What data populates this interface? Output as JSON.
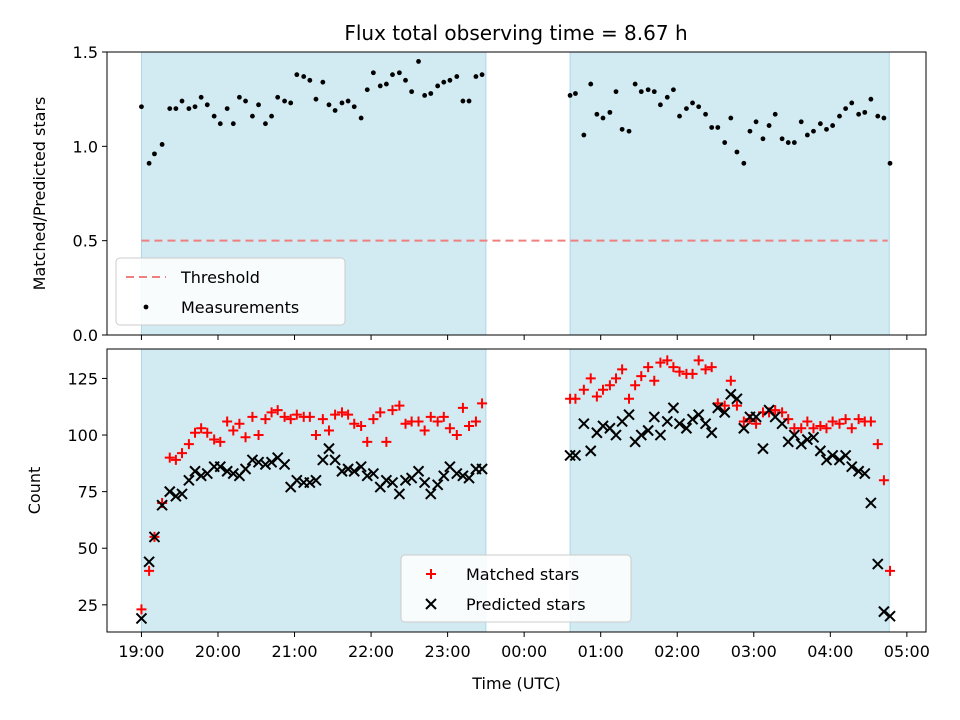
{
  "chart_data": [
    {
      "type": "scatter",
      "title": "Flux total observing time = 8.67 h",
      "ylabel": "Matched/Predicted stars",
      "xlabel": "",
      "ylim": [
        0,
        1.5
      ],
      "yticks": [
        "0.0",
        "0.5",
        "1.0",
        "1.5"
      ],
      "threshold": {
        "name": "Threshold",
        "value": 0.5,
        "x_start": 19.0,
        "x_end": 28.75,
        "color": "#f08080"
      },
      "observing_windows": [
        [
          19.0,
          23.5
        ],
        [
          24.6,
          28.77
        ]
      ],
      "window_color": "#add8e6",
      "legend_position": "lower-left",
      "series": [
        {
          "name": "Measurements",
          "color": "#000000",
          "x": [
            19.0,
            19.1,
            19.17,
            19.27,
            19.37,
            19.45,
            19.53,
            19.62,
            19.7,
            19.78,
            19.86,
            19.95,
            20.03,
            20.12,
            20.2,
            20.28,
            20.36,
            20.45,
            20.53,
            20.62,
            20.7,
            20.78,
            20.87,
            20.95,
            21.03,
            21.12,
            21.2,
            21.28,
            21.37,
            21.45,
            21.53,
            21.62,
            21.7,
            21.78,
            21.87,
            21.95,
            22.03,
            22.12,
            22.2,
            22.28,
            22.37,
            22.45,
            22.53,
            22.62,
            22.7,
            22.78,
            22.87,
            22.95,
            23.03,
            23.12,
            23.2,
            23.28,
            23.37,
            23.45,
            24.6,
            24.67,
            24.78,
            24.87,
            24.95,
            25.03,
            25.12,
            25.2,
            25.28,
            25.37,
            25.45,
            25.53,
            25.62,
            25.7,
            25.78,
            25.87,
            25.95,
            26.03,
            26.12,
            26.2,
            26.28,
            26.37,
            26.45,
            26.53,
            26.62,
            26.7,
            26.78,
            26.87,
            26.95,
            27.03,
            27.12,
            27.2,
            27.28,
            27.37,
            27.45,
            27.53,
            27.62,
            27.7,
            27.78,
            27.87,
            27.95,
            28.03,
            28.12,
            28.2,
            28.28,
            28.37,
            28.45,
            28.53,
            28.62,
            28.7,
            28.78
          ],
          "y": [
            1.21,
            0.91,
            0.96,
            1.01,
            1.2,
            1.2,
            1.24,
            1.2,
            1.21,
            1.26,
            1.22,
            1.16,
            1.12,
            1.2,
            1.12,
            1.26,
            1.24,
            1.16,
            1.22,
            1.12,
            1.16,
            1.26,
            1.24,
            1.23,
            1.38,
            1.37,
            1.35,
            1.25,
            1.34,
            1.22,
            1.19,
            1.23,
            1.24,
            1.21,
            1.15,
            1.3,
            1.39,
            1.32,
            1.33,
            1.38,
            1.39,
            1.35,
            1.29,
            1.45,
            1.27,
            1.28,
            1.32,
            1.34,
            1.35,
            1.37,
            1.24,
            1.24,
            1.37,
            1.38,
            1.27,
            1.28,
            1.06,
            1.33,
            1.17,
            1.15,
            1.18,
            1.29,
            1.09,
            1.08,
            1.33,
            1.29,
            1.3,
            1.29,
            1.22,
            1.26,
            1.3,
            1.16,
            1.2,
            1.23,
            1.21,
            1.17,
            1.1,
            1.1,
            1.02,
            1.15,
            0.97,
            0.91,
            1.08,
            1.13,
            1.04,
            1.11,
            1.17,
            1.04,
            1.02,
            1.02,
            1.13,
            1.06,
            1.08,
            1.12,
            1.09,
            1.11,
            1.16,
            1.2,
            1.23,
            1.17,
            1.18,
            1.25,
            1.16,
            1.15,
            0.91
          ]
        }
      ]
    },
    {
      "type": "scatter",
      "xlabel": "Time (UTC)",
      "ylabel": "Count",
      "ylim": [
        13,
        138
      ],
      "yticks": [
        "25",
        "50",
        "75",
        "100",
        "125"
      ],
      "xticks": [
        "19:00",
        "20:00",
        "21:00",
        "22:00",
        "23:00",
        "00:00",
        "01:00",
        "02:00",
        "03:00",
        "04:00",
        "05:00"
      ],
      "observing_windows": [
        [
          19.0,
          23.5
        ],
        [
          24.6,
          28.77
        ]
      ],
      "window_color": "#add8e6",
      "legend_position": "lower-center",
      "series": [
        {
          "name": "Matched stars",
          "marker": "+",
          "color": "#ff0000",
          "x": [
            19.0,
            19.1,
            19.17,
            19.27,
            19.37,
            19.45,
            19.53,
            19.62,
            19.7,
            19.78,
            19.86,
            19.95,
            20.03,
            20.12,
            20.2,
            20.28,
            20.36,
            20.45,
            20.53,
            20.62,
            20.7,
            20.78,
            20.87,
            20.95,
            21.03,
            21.12,
            21.2,
            21.28,
            21.37,
            21.45,
            21.53,
            21.62,
            21.7,
            21.78,
            21.87,
            21.95,
            22.03,
            22.12,
            22.2,
            22.28,
            22.37,
            22.45,
            22.53,
            22.62,
            22.7,
            22.78,
            22.87,
            22.95,
            23.03,
            23.12,
            23.2,
            23.28,
            23.37,
            23.45,
            24.6,
            24.67,
            24.78,
            24.87,
            24.95,
            25.03,
            25.12,
            25.2,
            25.28,
            25.37,
            25.45,
            25.53,
            25.62,
            25.7,
            25.78,
            25.87,
            25.95,
            26.03,
            26.12,
            26.2,
            26.28,
            26.37,
            26.45,
            26.53,
            26.62,
            26.7,
            26.78,
            26.87,
            26.95,
            27.03,
            27.12,
            27.2,
            27.28,
            27.37,
            27.45,
            27.53,
            27.62,
            27.7,
            27.78,
            27.87,
            27.95,
            28.03,
            28.12,
            28.2,
            28.28,
            28.37,
            28.45,
            28.53,
            28.62,
            28.7,
            28.78
          ],
          "y": [
            23,
            40,
            55,
            70,
            90,
            89,
            92,
            96,
            101,
            103,
            101,
            98,
            97,
            106,
            102,
            105,
            99,
            108,
            100,
            107,
            110,
            111,
            108,
            107,
            109,
            108,
            108,
            100,
            107,
            102,
            109,
            110,
            109,
            105,
            104,
            97,
            107,
            110,
            97,
            111,
            113,
            105,
            106,
            106,
            102,
            108,
            106,
            108,
            103,
            100,
            112,
            104,
            106,
            114,
            116,
            116,
            120,
            125,
            117,
            120,
            122,
            125,
            129,
            116,
            122,
            126,
            130,
            124,
            132,
            133,
            130,
            128,
            127,
            127,
            133,
            129,
            130,
            114,
            113,
            124,
            113,
            106,
            107,
            105,
            110,
            110,
            111,
            110,
            107,
            103,
            103,
            106,
            103,
            104,
            103,
            106,
            105,
            107,
            103,
            107,
            106,
            106,
            96,
            80,
            40
          ]
        },
        {
          "name": "Predicted stars",
          "marker": "x",
          "color": "#000000",
          "x": [
            19.0,
            19.1,
            19.17,
            19.27,
            19.37,
            19.45,
            19.53,
            19.62,
            19.7,
            19.78,
            19.86,
            19.95,
            20.03,
            20.12,
            20.2,
            20.28,
            20.36,
            20.45,
            20.53,
            20.62,
            20.7,
            20.78,
            20.87,
            20.95,
            21.03,
            21.12,
            21.2,
            21.28,
            21.37,
            21.45,
            21.53,
            21.62,
            21.7,
            21.78,
            21.87,
            21.95,
            22.03,
            22.12,
            22.2,
            22.28,
            22.37,
            22.45,
            22.53,
            22.62,
            22.7,
            22.78,
            22.87,
            22.95,
            23.03,
            23.12,
            23.2,
            23.28,
            23.37,
            23.45,
            24.6,
            24.67,
            24.78,
            24.87,
            24.95,
            25.03,
            25.12,
            25.2,
            25.28,
            25.37,
            25.45,
            25.53,
            25.62,
            25.7,
            25.78,
            25.87,
            25.95,
            26.03,
            26.12,
            26.2,
            26.28,
            26.37,
            26.45,
            26.53,
            26.62,
            26.7,
            26.78,
            26.87,
            26.95,
            27.03,
            27.12,
            27.2,
            27.28,
            27.37,
            27.45,
            27.53,
            27.62,
            27.7,
            27.78,
            27.87,
            27.95,
            28.03,
            28.12,
            28.2,
            28.28,
            28.37,
            28.45,
            28.53,
            28.62,
            28.7,
            28.78
          ],
          "y": [
            19,
            44,
            55,
            69,
            75,
            73,
            74,
            80,
            84,
            82,
            83,
            86,
            86,
            84,
            83,
            82,
            85,
            89,
            88,
            87,
            88,
            90,
            87,
            77,
            80,
            79,
            79,
            80,
            89,
            94,
            89,
            84,
            85,
            84,
            86,
            82,
            83,
            77,
            80,
            79,
            74,
            80,
            81,
            84,
            79,
            74,
            78,
            82,
            86,
            83,
            82,
            81,
            85,
            85,
            91,
            91,
            105,
            93,
            101,
            104,
            103,
            100,
            106,
            109,
            97,
            100,
            102,
            108,
            100,
            106,
            112,
            105,
            103,
            107,
            109,
            105,
            101,
            112,
            110,
            118,
            116,
            103,
            108,
            108,
            94,
            111,
            108,
            105,
            97,
            100,
            96,
            98,
            99,
            93,
            89,
            91,
            89,
            91,
            86,
            84,
            83,
            70,
            43,
            22,
            20
          ]
        }
      ]
    }
  ]
}
